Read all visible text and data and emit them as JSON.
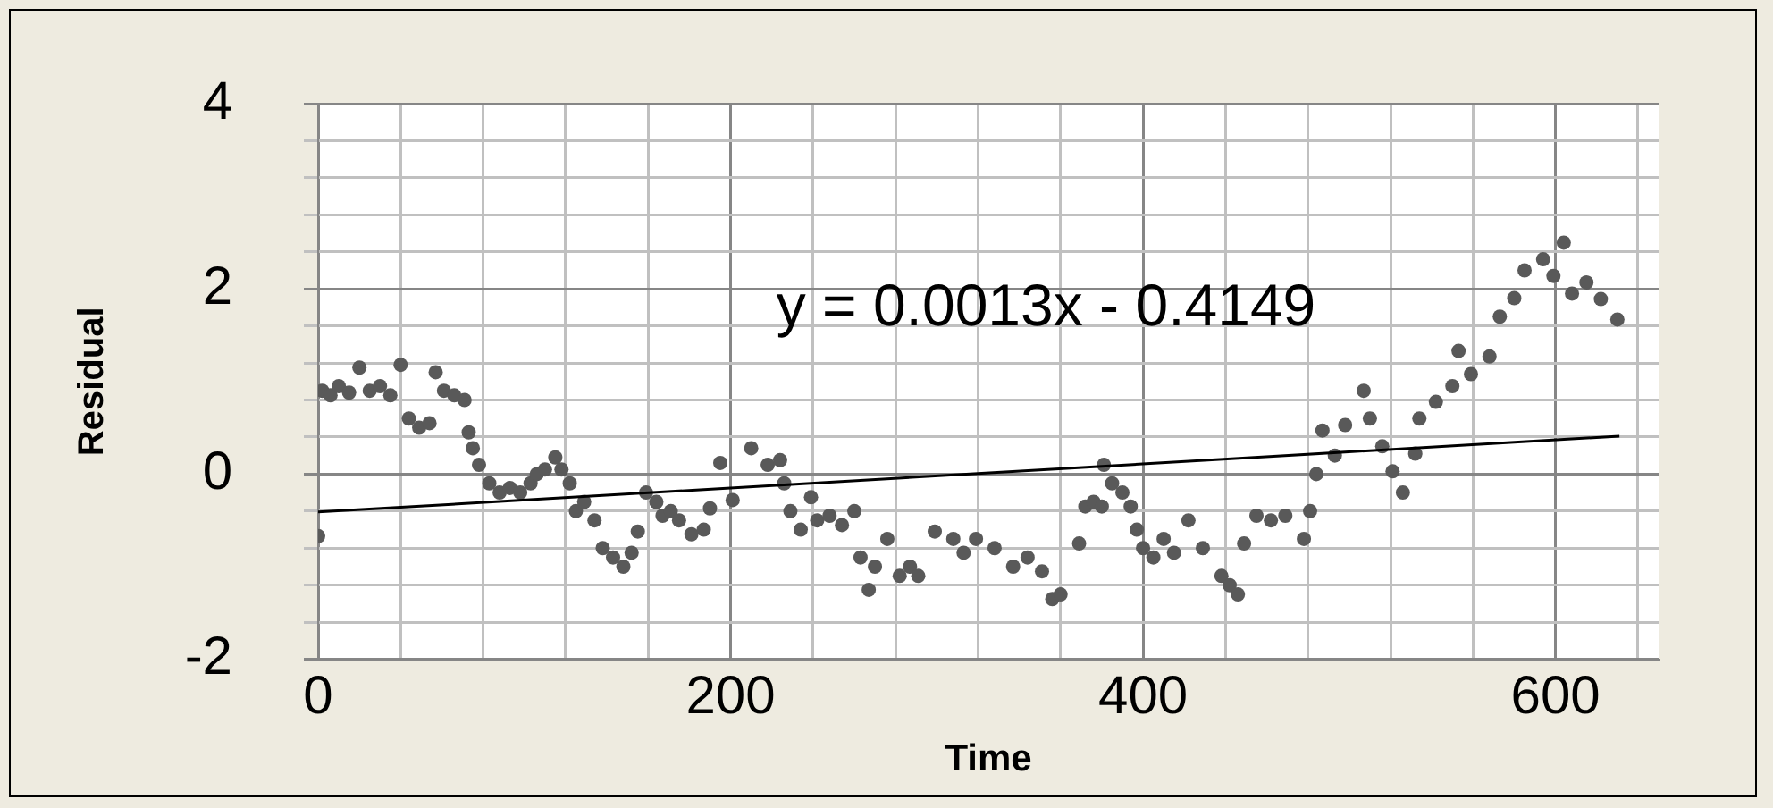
{
  "chart_data": {
    "type": "scatter",
    "xlabel": "Time",
    "ylabel": "Residual",
    "xlim": [
      0,
      650
    ],
    "ylim": [
      -2,
      4
    ],
    "xticks": [
      0,
      {
        "value": 40,
        "label": null
      },
      {
        "value": 80,
        "label": null
      },
      {
        "value": 120,
        "label": null
      },
      {
        "value": 160,
        "label": null
      },
      200,
      {
        "value": 240,
        "label": null
      },
      {
        "value": 280,
        "label": null
      },
      {
        "value": 320,
        "label": null
      },
      {
        "value": 360,
        "label": null
      },
      400,
      {
        "value": 440,
        "label": null
      },
      {
        "value": 480,
        "label": null
      },
      {
        "value": 520,
        "label": null
      },
      {
        "value": 560,
        "label": null
      },
      600,
      {
        "value": 640,
        "label": null
      }
    ],
    "yticks": [
      -2,
      {
        "value": -1.6,
        "label": null
      },
      {
        "value": -1.2,
        "label": null
      },
      {
        "value": -0.8,
        "label": null
      },
      {
        "value": -0.4,
        "label": null
      },
      0,
      {
        "value": 0.4,
        "label": null
      },
      {
        "value": 0.8,
        "label": null
      },
      {
        "value": 1.2,
        "label": null
      },
      {
        "value": 1.6,
        "label": null
      },
      2,
      {
        "value": 2.4,
        "label": null
      },
      {
        "value": 2.8,
        "label": null
      },
      {
        "value": 3.2,
        "label": null
      },
      {
        "value": 3.6,
        "label": null
      },
      4
    ],
    "grid": true,
    "legend": false,
    "annotations": [
      "y = 0.0013x - 0.4149"
    ],
    "series": [
      {
        "color": "#595959",
        "marker": "circle",
        "x": [
          0,
          2,
          6,
          10,
          15,
          20,
          25,
          30,
          35,
          40,
          44,
          49,
          54,
          57,
          61,
          66,
          71,
          73,
          75,
          78,
          83,
          88,
          93,
          98,
          103,
          106,
          110,
          115,
          118,
          122,
          125,
          129,
          134,
          138,
          143,
          148,
          152,
          155,
          159,
          164,
          167,
          171,
          175,
          181,
          187,
          190,
          195,
          201,
          210,
          218,
          224,
          226,
          229,
          234,
          239,
          242,
          248,
          254,
          260,
          263,
          267,
          270,
          276,
          282,
          287,
          291,
          299,
          308,
          313,
          319,
          328,
          337,
          344,
          351,
          356,
          360,
          369,
          372,
          376,
          380,
          381,
          385,
          390,
          394,
          397,
          400,
          405,
          410,
          415,
          422,
          429,
          438,
          442,
          446,
          449,
          455,
          462,
          469,
          478,
          481,
          484,
          487,
          493,
          498,
          507,
          510,
          516,
          521,
          526,
          532,
          534,
          542,
          550,
          553,
          559,
          568,
          573,
          580,
          585,
          594,
          599,
          604,
          608,
          615,
          622,
          630
        ],
        "values": [
          -0.67,
          0.9,
          0.85,
          0.95,
          0.88,
          1.15,
          0.9,
          0.95,
          0.85,
          1.18,
          0.6,
          0.5,
          0.55,
          1.1,
          0.9,
          0.85,
          0.8,
          0.45,
          0.28,
          0.1,
          -0.1,
          -0.2,
          -0.15,
          -0.2,
          -0.1,
          0.0,
          0.05,
          0.18,
          0.05,
          -0.1,
          -0.4,
          -0.3,
          -0.5,
          -0.8,
          -0.9,
          -1.0,
          -0.85,
          -0.62,
          -0.2,
          -0.3,
          -0.45,
          -0.4,
          -0.5,
          -0.65,
          -0.6,
          -0.37,
          0.12,
          -0.28,
          0.28,
          0.1,
          0.15,
          -0.1,
          -0.4,
          -0.6,
          -0.25,
          -0.5,
          -0.45,
          -0.55,
          -0.4,
          -0.9,
          -1.25,
          -1.0,
          -0.7,
          -1.1,
          -1.0,
          -1.1,
          -0.62,
          -0.7,
          -0.85,
          -0.7,
          -0.8,
          -1.0,
          -0.9,
          -1.05,
          -1.35,
          -1.3,
          -0.75,
          -0.35,
          -0.3,
          -0.35,
          0.1,
          -0.1,
          -0.2,
          -0.35,
          -0.6,
          -0.8,
          -0.9,
          -0.7,
          -0.85,
          -0.5,
          -0.8,
          -1.1,
          -1.2,
          -1.3,
          -0.75,
          -0.45,
          -0.5,
          -0.45,
          -0.7,
          -0.4,
          0.0,
          0.47,
          0.2,
          0.53,
          0.9,
          0.6,
          0.3,
          0.03,
          -0.2,
          0.22,
          0.6,
          0.78,
          0.95,
          1.33,
          1.08,
          1.27,
          1.7,
          1.9,
          2.2,
          2.32,
          2.14,
          2.5,
          1.95,
          2.07,
          1.89,
          1.67
        ]
      },
      {
        "type": "line",
        "color": "#000000",
        "marker": "none",
        "line_style": "solid",
        "x": [
          0,
          631
        ],
        "values": [
          -0.41,
          0.41
        ]
      }
    ]
  }
}
